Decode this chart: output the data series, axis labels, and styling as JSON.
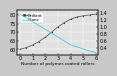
{
  "x": [
    0,
    0.5,
    1,
    1.5,
    2,
    2.5,
    3,
    3.5,
    4,
    4.5,
    5,
    5.5,
    6
  ],
  "gloss": [
    60,
    61.0,
    62.5,
    64.5,
    67.0,
    70.0,
    73.0,
    75.5,
    77.5,
    78.8,
    79.5,
    80.0,
    80.5
  ],
  "roughness": [
    1.38,
    1.27,
    1.16,
    1.05,
    0.94,
    0.83,
    0.72,
    0.61,
    0.5,
    0.44,
    0.38,
    0.32,
    0.28
  ],
  "gloss_color": "#444444",
  "roughness_color": "#44ccdd",
  "ylim_left": [
    57,
    83
  ],
  "ylim_right": [
    0.22,
    1.5
  ],
  "yticks_left": [
    60,
    65,
    70,
    75,
    80
  ],
  "yticks_right": [
    0.4,
    0.6,
    0.8,
    1.0,
    1.2,
    1.4
  ],
  "xticks": [
    0,
    1,
    2,
    3,
    4,
    5,
    6
  ],
  "xlim": [
    -0.2,
    6.2
  ],
  "bg_color": "#c8c8c8",
  "plot_bg_color": "#e0e0e0",
  "grid_color": "#ffffff",
  "tick_fontsize": 3.5,
  "label_fontsize": 3.2,
  "legend_fontsize": 3.0,
  "xlabel": "Number of polymer-coated rollers",
  "legend_line1": "Brillant",
  "legend_line2": "Glanz"
}
